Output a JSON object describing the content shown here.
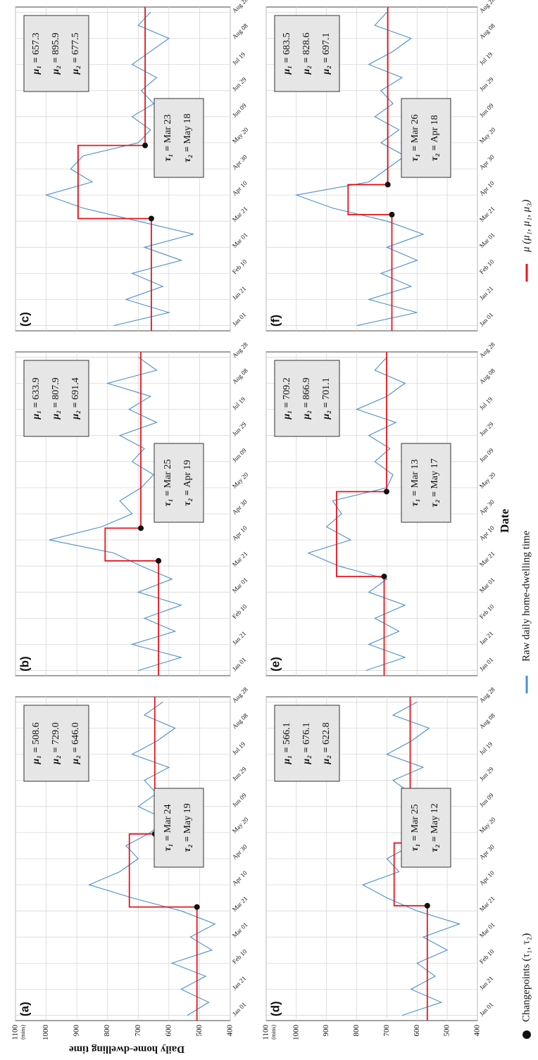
{
  "chart_data": {
    "type": "line",
    "y_title": "Daily home-dwelling time",
    "y_unit": "(mins)",
    "x_title": "Date",
    "legend": {
      "changepoints": "Changepoints (τ₁, τ₂)",
      "raw": "Raw daily home-dwelling time",
      "mean": "μ (μ₁, μ₁, μ₃)"
    },
    "raw_color": "#4a90c8",
    "mean_color": "#e8141b",
    "grid": true,
    "xlim": [
      -4,
      244
    ],
    "xticks": [
      {
        "value": 0,
        "label": "Jan 01"
      },
      {
        "value": 20,
        "label": "Jan 21"
      },
      {
        "value": 40,
        "label": "Feb 10"
      },
      {
        "value": 60,
        "label": "Mar 01"
      },
      {
        "value": 80,
        "label": "Mar 21"
      },
      {
        "value": 100,
        "label": "Apr 10"
      },
      {
        "value": 120,
        "label": "Apr 30"
      },
      {
        "value": 140,
        "label": "May 20"
      },
      {
        "value": 160,
        "label": "Jun 09"
      },
      {
        "value": 180,
        "label": "Jun 29"
      },
      {
        "value": 200,
        "label": "Jul 19"
      },
      {
        "value": 220,
        "label": "Aug 08"
      },
      {
        "value": 240,
        "label": "Aug 28"
      }
    ],
    "ylim": [
      400,
      1100
    ],
    "yticks": [
      400,
      500,
      600,
      700,
      800,
      900,
      1000,
      1100
    ],
    "x": [
      0,
      10,
      20,
      30,
      40,
      50,
      60,
      70,
      80,
      90,
      100,
      110,
      120,
      130,
      140,
      150,
      160,
      170,
      180,
      190,
      200,
      210,
      220,
      230,
      240
    ],
    "panels": [
      {
        "label": "(a)",
        "values": [
          540,
          470,
          560,
          480,
          590,
          460,
          530,
          450,
          560,
          720,
          860,
          760,
          700,
          740,
          660,
          610,
          700,
          640,
          680,
          600,
          720,
          640,
          580,
          680,
          620
        ],
        "mu_names": [
          "μ₁ = ",
          "μ₂ = ",
          "μ₂ = "
        ],
        "mu": [
          508.6,
          729.0,
          646.0
        ],
        "mu_labels": [
          "508.6",
          "729.0",
          "646.0"
        ],
        "tau_names": [
          "τ₁ = ",
          "τ₂ = "
        ],
        "tau": [
          {
            "value": 83,
            "label": "Mar 24"
          },
          {
            "value": 139,
            "label": "May 19"
          }
        ]
      },
      {
        "label": "(b)",
        "values": [
          700,
          560,
          720,
          580,
          680,
          560,
          700,
          590,
          690,
          780,
          990,
          820,
          720,
          760,
          690,
          650,
          720,
          680,
          760,
          640,
          730,
          660,
          800,
          640,
          700
        ],
        "mu_names": [
          "μ₁ = ",
          "μ₂ = ",
          "μ₂ = "
        ],
        "mu": [
          633.9,
          807.9,
          691.4
        ],
        "mu_labels": [
          "633.9",
          "807.9",
          "691.4"
        ],
        "tau_names": [
          "τ₁ = ",
          "τ₂ = "
        ],
        "tau": [
          {
            "value": 84,
            "label": "Mar 25"
          },
          {
            "value": 109,
            "label": "Apr 19"
          }
        ]
      },
      {
        "label": "(c)",
        "values": [
          780,
          600,
          740,
          620,
          720,
          560,
          680,
          520,
          700,
          880,
          1000,
          850,
          920,
          880,
          700,
          660,
          720,
          650,
          690,
          640,
          720,
          660,
          600,
          700,
          660
        ],
        "mu_names": [
          "μ₁ = ",
          "μ₂ = ",
          "μ₂ = "
        ],
        "mu": [
          657.3,
          895.9,
          677.5
        ],
        "mu_labels": [
          "657.3",
          "895.9",
          "677.5"
        ],
        "tau_names": [
          "τ₁ = ",
          "τ₂ = "
        ],
        "tau": [
          {
            "value": 82,
            "label": "Mar 23"
          },
          {
            "value": 138,
            "label": "May 18"
          }
        ]
      },
      {
        "label": "(d)",
        "values": [
          650,
          520,
          620,
          540,
          600,
          500,
          580,
          460,
          600,
          700,
          780,
          660,
          700,
          620,
          640,
          600,
          650,
          620,
          680,
          580,
          700,
          620,
          560,
          680,
          600
        ],
        "mu_names": [
          "μ₁ = ",
          "μ₂ = ",
          "μ₂ = "
        ],
        "mu": [
          566.1,
          676.1,
          622.8
        ],
        "mu_labels": [
          "566.1",
          "676.1",
          "622.8"
        ],
        "tau_names": [
          "τ₁ = ",
          "τ₂ = "
        ],
        "tau": [
          {
            "value": 84,
            "label": "Mar 25"
          },
          {
            "value": 132,
            "label": "May 12"
          }
        ]
      },
      {
        "label": "(e)",
        "values": [
          770,
          640,
          760,
          660,
          740,
          640,
          760,
          700,
          860,
          960,
          820,
          900,
          850,
          880,
          700,
          680,
          740,
          690,
          760,
          670,
          800,
          700,
          640,
          740,
          700
        ],
        "mu_names": [
          "μ₁ = ",
          "μ₂ = ",
          "μ₂ = "
        ],
        "mu": [
          709.2,
          866.9,
          701.1
        ],
        "mu_labels": [
          "709.2",
          "866.9",
          "701.1"
        ],
        "tau_names": [
          "τ₁ = ",
          "τ₂ = "
        ],
        "tau": [
          {
            "value": 72,
            "label": "Mar 13"
          },
          {
            "value": 137,
            "label": "May 17"
          }
        ]
      },
      {
        "label": "(f)",
        "values": [
          800,
          600,
          760,
          620,
          720,
          600,
          700,
          580,
          700,
          880,
          1000,
          760,
          700,
          640,
          720,
          660,
          740,
          680,
          720,
          650,
          760,
          680,
          620,
          740,
          700
        ],
        "mu_names": [
          "μ₁ = ",
          "μ₂ = ",
          "μ₂ = "
        ],
        "mu": [
          683.5,
          828.6,
          697.1
        ],
        "mu_labels": [
          "683.5",
          "828.6",
          "697.1"
        ],
        "tau_names": [
          "τ₁ = ",
          "τ₂ = "
        ],
        "tau": [
          {
            "value": 85,
            "label": "Mar 26"
          },
          {
            "value": 108,
            "label": "Apr 18"
          }
        ]
      }
    ]
  }
}
